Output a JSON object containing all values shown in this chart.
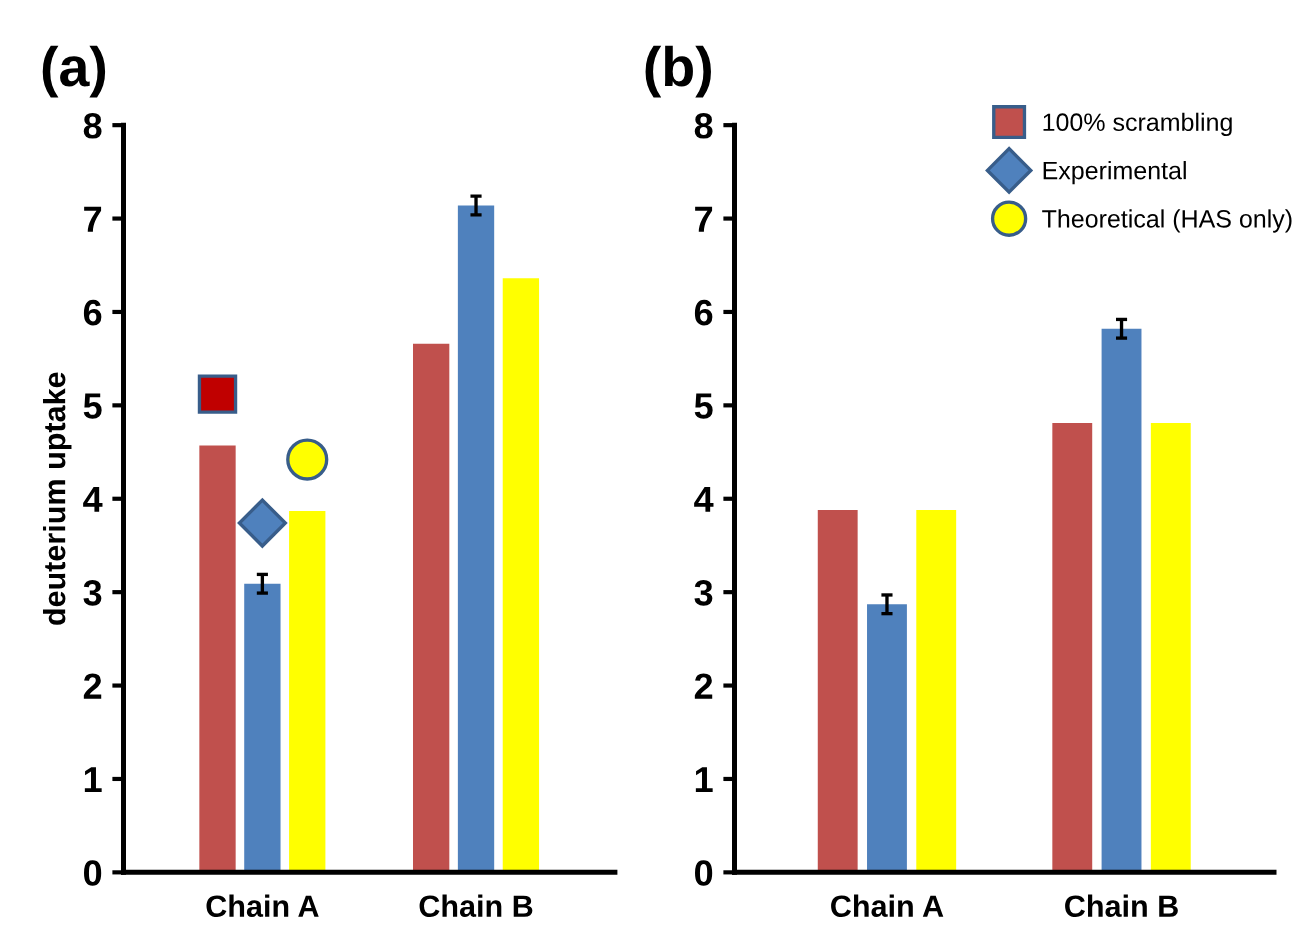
{
  "chart_data": [
    {
      "type": "bar",
      "title": "(a)",
      "ylabel": "deuterium uptake",
      "categories": [
        "Chain A",
        "Chain B"
      ],
      "ylim": [
        0,
        8
      ],
      "yticks": [
        0,
        1,
        2,
        3,
        4,
        5,
        6,
        7,
        8
      ],
      "grid": false,
      "legend": false,
      "series": [
        {
          "color": "#c0504d",
          "marker": "square",
          "values": [
            4.57,
            5.66
          ]
        },
        {
          "color": "#4f81bd",
          "marker": "diamond",
          "values": [
            3.09,
            7.14
          ],
          "errors": [
            0.1,
            0.1
          ]
        },
        {
          "color": "#ffff00",
          "marker": "circle",
          "values": [
            3.87,
            6.36
          ]
        }
      ]
    },
    {
      "type": "bar",
      "title": "(b)",
      "categories": [
        "Chain A",
        "Chain B"
      ],
      "ylim": [
        0,
        8
      ],
      "yticks": [
        0,
        1,
        2,
        3,
        4,
        5,
        6,
        7,
        8
      ],
      "grid": false,
      "legend": "top right",
      "series": [
        {
          "name": "100% scrambling",
          "color": "#c0504d",
          "marker": "square",
          "values": [
            3.88,
            4.81
          ]
        },
        {
          "name": "Experimental",
          "color": "#4f81bd",
          "marker": "diamond",
          "values": [
            2.87,
            5.82
          ],
          "errors": [
            0.1,
            0.1
          ]
        },
        {
          "name": "Theoretical (HAS only)",
          "color": "#ffff00",
          "marker": "circle",
          "values": [
            3.88,
            4.81
          ]
        }
      ]
    }
  ]
}
